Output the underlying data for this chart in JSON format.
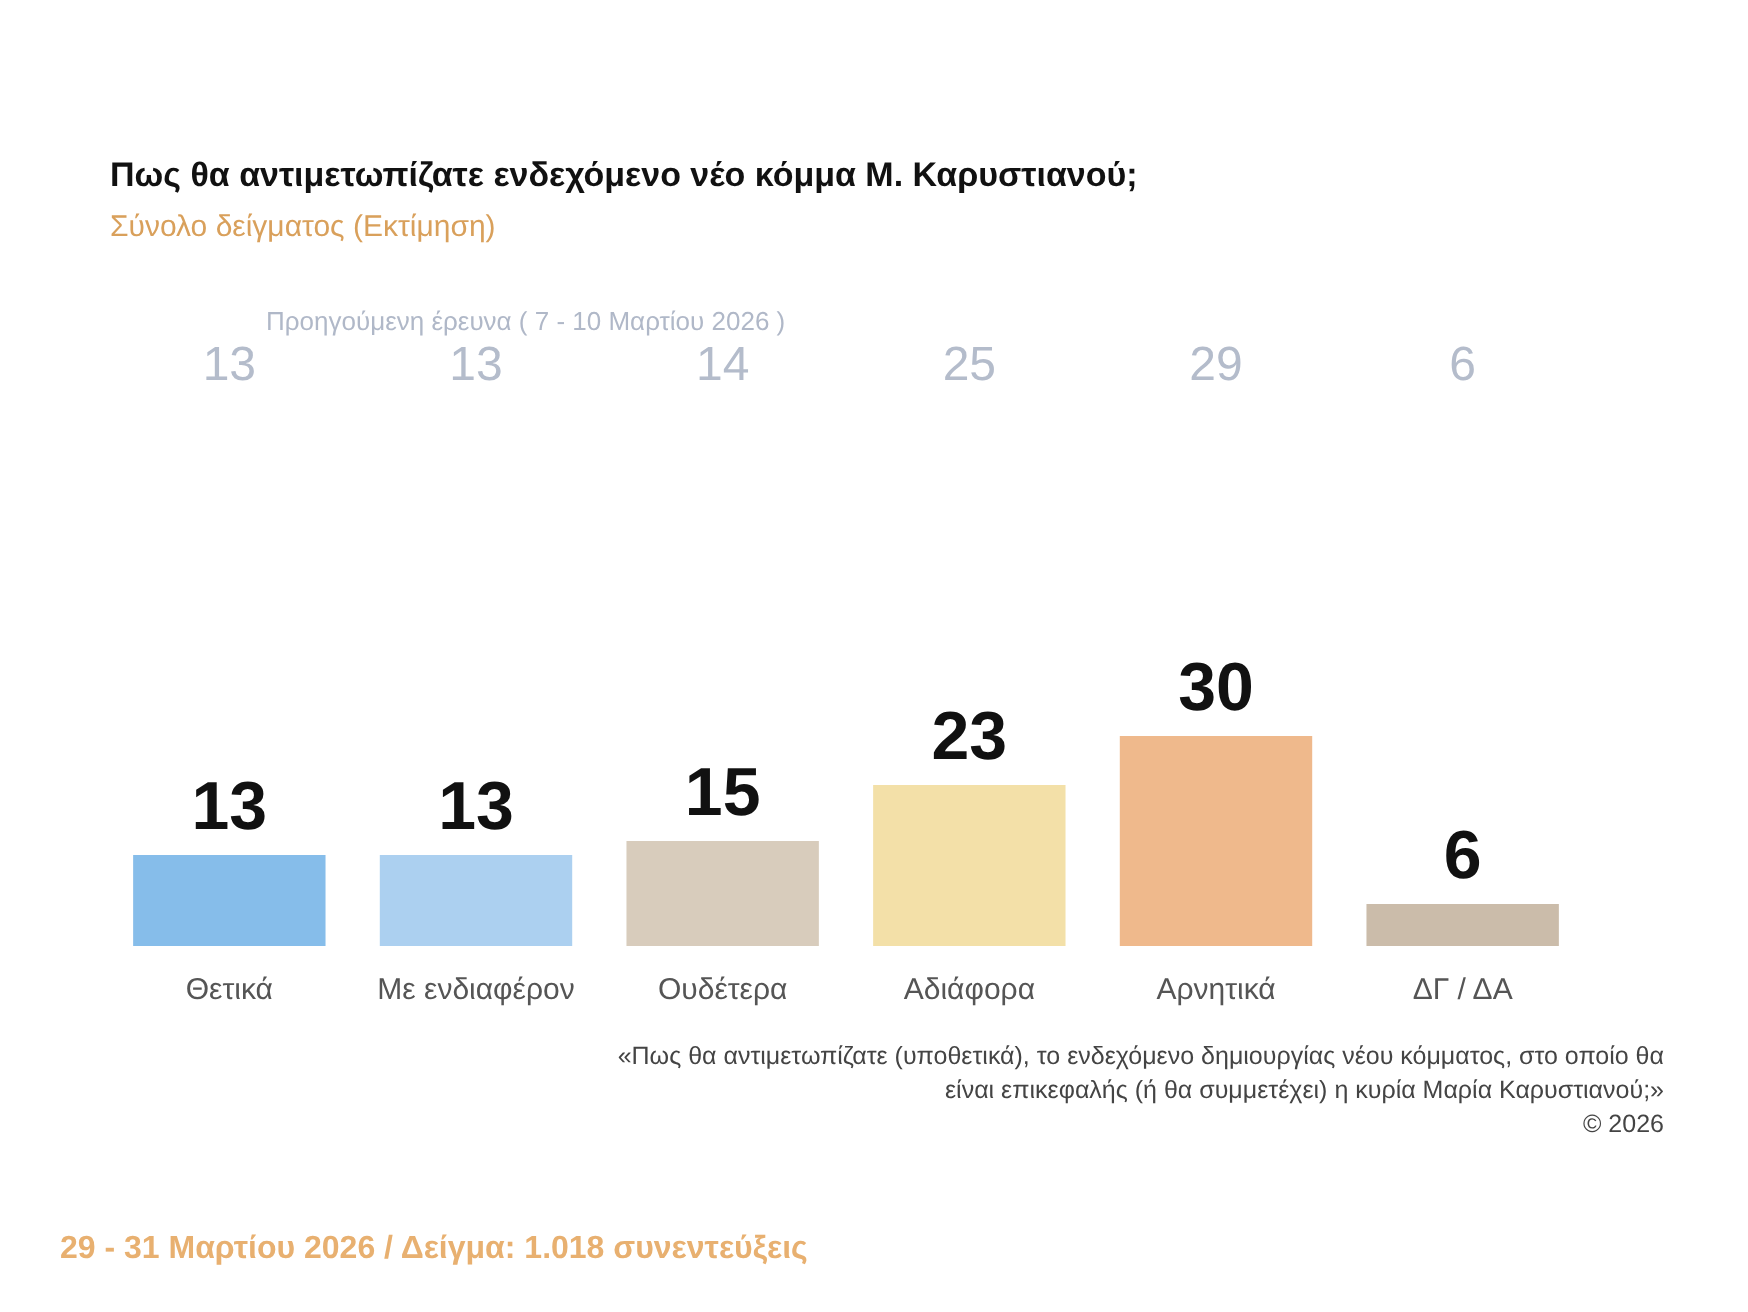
{
  "chart_data": {
    "type": "bar",
    "title": "Πως θα αντιμετωπίζατε ενδεχόμενο νέο κόμμα Μ. Καρυστιανού;",
    "subtitle": "Σύνολο δείγματος  (Εκτίμηση)",
    "categories": [
      "Θετικά",
      "Με ενδιαφέρον",
      "Ουδέτερα",
      "Αδιάφορα",
      "Αρνητικά",
      "ΔΓ / ΔΑ"
    ],
    "values": [
      13,
      13,
      15,
      23,
      30,
      6
    ],
    "colors": [
      "#86bdea",
      "#acd0f0",
      "#d8ccbc",
      "#f3e0a8",
      "#efb98c",
      "#cbbcaa"
    ],
    "data_labels": true,
    "annotations": [
      "Προηγούμενη έρευνα ( 7 - 10 Μαρτίου 2026 )",
      "13",
      "13",
      "14",
      "25",
      "29",
      "6",
      "«Πως θα αντιμετωπίζατε (υποθετικά), το ενδεχόμενο δημιουργίας νέου κόμματος, στο οποίο θα είναι επικεφαλής (ή θα συμμετέχει) η κυρία Μαρία Καρυστιανού;»",
      "©  2026",
      "29 - 31 Μαρτίου 2026  /  Δείγμα:  1.018 συνεντεύξεις"
    ]
  }
}
